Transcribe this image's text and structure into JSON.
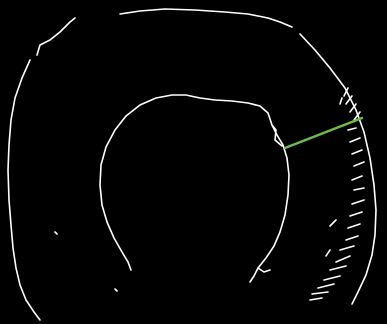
{
  "scene": {
    "background_color": "#000000",
    "contour_color": "#ffffff",
    "measure_line_color": "#6cc04a"
  }
}
